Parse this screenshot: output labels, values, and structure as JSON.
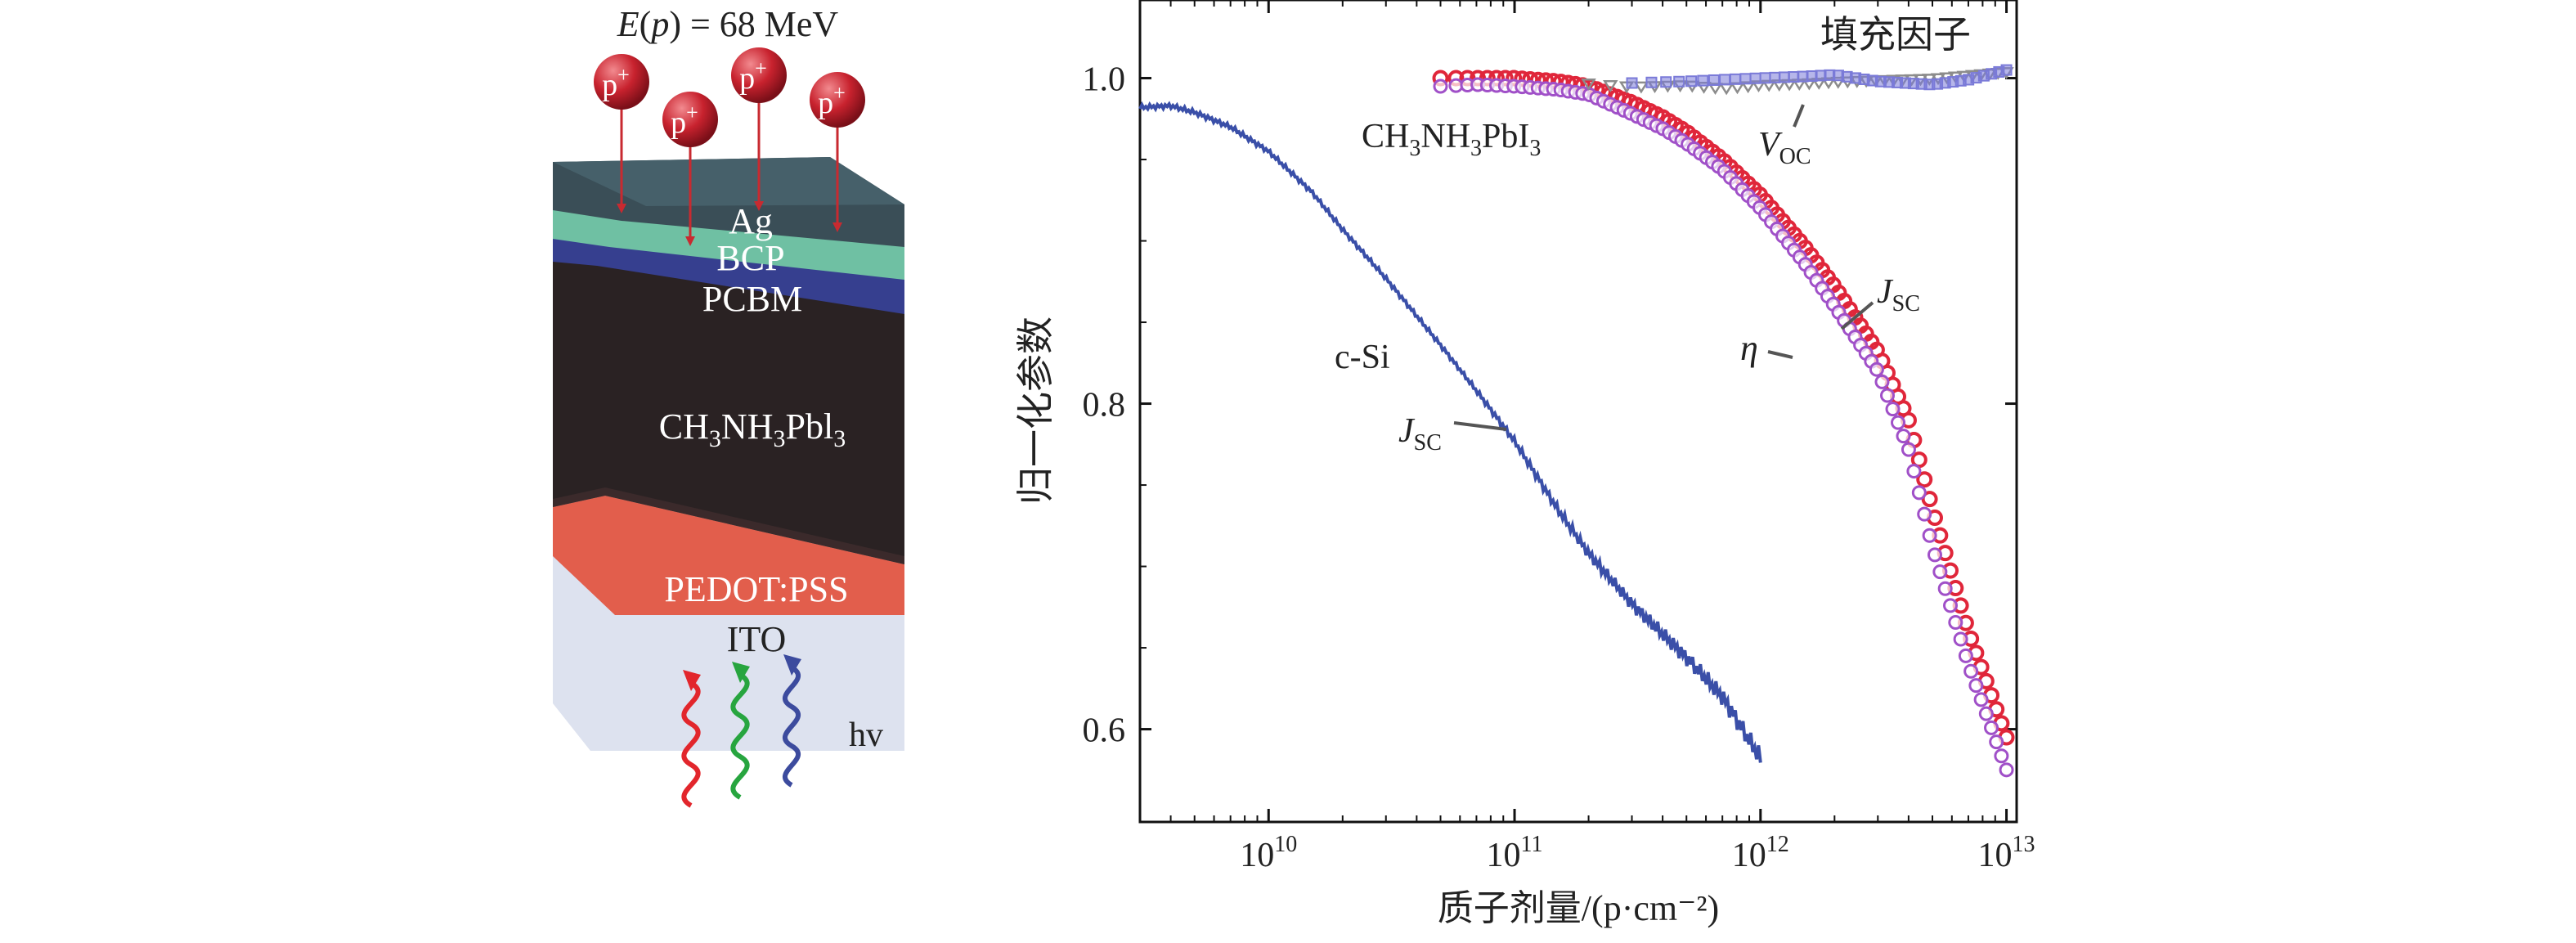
{
  "device": {
    "beam_label_prefix": "E",
    "beam_label_arg": "p",
    "beam_label_value": " = 68 MeV",
    "proton_symbol": "p",
    "proton_charge": "+",
    "proton_count": 4,
    "layers": [
      {
        "name": "Ag",
        "color": "#3a4e57"
      },
      {
        "name": "BCP",
        "color": "#6fc0a3"
      },
      {
        "name": "PCBM",
        "color": "#363f8f"
      },
      {
        "name": "CH3NH3Pbl3",
        "color": "#2a2223"
      },
      {
        "name": "PEDOT:PSS",
        "color": "#e25e4c"
      },
      {
        "name": "ITO",
        "color": "#dde2ef"
      }
    ],
    "light_label": "hv",
    "light_colors": [
      "#e2262c",
      "#27a53f",
      "#3c4b9e"
    ]
  },
  "chart_data": {
    "type": "scatter",
    "title": "",
    "xlabel": "质子剂量/(p·cm⁻²)",
    "ylabel": "归一化参数",
    "xscale": "log",
    "xlim": [
      3000000000.0,
      11000000000000.0
    ],
    "ylim": [
      0.543,
      1.048
    ],
    "x_ticks": [
      10000000000.0,
      100000000000.0,
      1000000000000.0,
      10000000000000.0
    ],
    "x_tick_labels": [
      {
        "base": "10",
        "exp": "10"
      },
      {
        "base": "10",
        "exp": "11"
      },
      {
        "base": "10",
        "exp": "12"
      },
      {
        "base": "10",
        "exp": "13"
      }
    ],
    "y_ticks": [
      0.6,
      0.8,
      1.0
    ],
    "y_tick_labels": [
      "0.6",
      "0.8",
      "1.0"
    ],
    "colors": {
      "csi": "#3a4fa8",
      "jsc": "#e0263a",
      "eta": "#a050c8",
      "voc": "#8c8c8c",
      "ff": "#7a7ad8"
    },
    "series": [
      {
        "key": "csi_jsc",
        "style": "line",
        "x": [
          3000000000.0,
          4000000000.0,
          5000000000.0,
          7000000000.0,
          10000000000.0,
          15000000000.0,
          20000000000.0,
          30000000000.0,
          50000000000.0,
          70000000000.0,
          100000000000.0,
          150000000000.0,
          200000000000.0,
          300000000000.0,
          500000000000.0,
          700000000000.0,
          1000000000000.0
        ],
        "y": [
          0.982,
          0.983,
          0.979,
          0.97,
          0.955,
          0.93,
          0.907,
          0.877,
          0.836,
          0.808,
          0.777,
          0.735,
          0.708,
          0.677,
          0.644,
          0.62,
          0.582
        ]
      },
      {
        "key": "perov_jsc",
        "style": "marker",
        "x": [
          50000000000.0,
          70000000000.0,
          100000000000.0,
          150000000000.0,
          200000000000.0,
          300000000000.0,
          400000000000.0,
          500000000000.0,
          700000000000.0,
          1000000000000.0,
          1500000000000.0,
          2000000000000.0,
          3000000000000.0,
          4000000000000.0,
          5000000000000.0,
          7000000000000.0,
          10000000000000.0
        ],
        "y": [
          1.0,
          1.0,
          1.0,
          0.998,
          0.995,
          0.985,
          0.976,
          0.967,
          0.95,
          0.928,
          0.897,
          0.872,
          0.832,
          0.79,
          0.735,
          0.66,
          0.595
        ]
      },
      {
        "key": "perov_eta",
        "style": "marker",
        "x": [
          50000000000.0,
          70000000000.0,
          100000000000.0,
          150000000000.0,
          200000000000.0,
          300000000000.0,
          400000000000.0,
          500000000000.0,
          700000000000.0,
          1000000000000.0,
          1500000000000.0,
          2000000000000.0,
          3000000000000.0,
          4000000000000.0,
          5000000000000.0,
          7000000000000.0,
          10000000000000.0
        ],
        "y": [
          0.995,
          0.996,
          0.995,
          0.993,
          0.99,
          0.978,
          0.969,
          0.96,
          0.944,
          0.92,
          0.887,
          0.86,
          0.82,
          0.772,
          0.712,
          0.64,
          0.575
        ]
      },
      {
        "key": "perov_voc",
        "style": "marker",
        "x": [
          200000000000.0,
          300000000000.0,
          500000000000.0,
          700000000000.0,
          1000000000000.0,
          1500000000000.0,
          2000000000000.0,
          3000000000000.0,
          5000000000000.0,
          7000000000000.0,
          10000000000000.0
        ],
        "y": [
          0.997,
          0.995,
          0.996,
          0.994,
          0.996,
          0.997,
          0.998,
          0.999,
          1.0,
          1.002,
          1.004
        ]
      },
      {
        "key": "perov_ff",
        "style": "marker",
        "x": [
          300000000000.0,
          500000000000.0,
          700000000000.0,
          1000000000000.0,
          1500000000000.0,
          2000000000000.0,
          3000000000000.0,
          5000000000000.0,
          7000000000000.0,
          10000000000000.0
        ],
        "y": [
          0.997,
          0.998,
          0.999,
          1.0,
          1.001,
          1.002,
          0.998,
          0.996,
          0.999,
          1.005
        ]
      }
    ],
    "annotations": {
      "perovskite_label": {
        "parts": [
          "CH",
          "3",
          "NH",
          "3",
          "PbI",
          "3"
        ]
      },
      "csi_label": "c-Si",
      "jsc_main": "J",
      "jsc_sub": "SC",
      "voc_main": "V",
      "voc_sub": "OC",
      "eta": "η",
      "ff_label": "填充因子"
    }
  }
}
